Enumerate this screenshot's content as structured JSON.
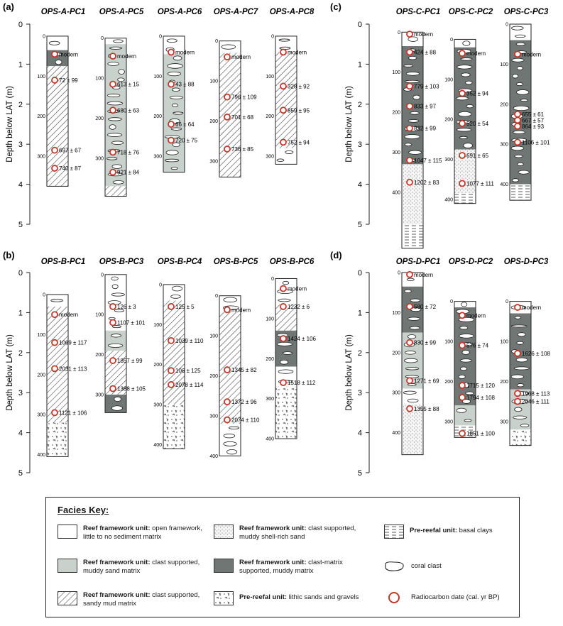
{
  "axis": {
    "title": "Depth below LAT (m)",
    "major_ticks": [
      "0",
      "1",
      "2",
      "3",
      "4",
      "5"
    ]
  },
  "panels": [
    {
      "label": "(a)",
      "depth_max_m": 5,
      "cores": [
        {
          "name": "OPS-A-PC1",
          "length_cm": 375,
          "cm_labels": [
            "0",
            "100",
            "200",
            "300"
          ],
          "units": [
            {
              "from": 0,
              "to": 35,
              "facies": "framework"
            },
            {
              "from": 35,
              "to": 75,
              "facies": "clast-matrix"
            },
            {
              "from": 75,
              "to": 370,
              "facies": "sandy-mud"
            },
            {
              "from": 370,
              "to": 375,
              "facies": "sandy-mud"
            }
          ],
          "dates": [
            {
              "depth_cm": 45,
              "label": "modern"
            },
            {
              "depth_cm": 110,
              "label": "72 ± 99"
            },
            {
              "depth_cm": 285,
              "label": "697 ± 67"
            },
            {
              "depth_cm": 330,
              "label": "740 ± 87"
            }
          ]
        },
        {
          "name": "OPS-A-PC5",
          "length_cm": 395,
          "cm_labels": [
            "0",
            "100",
            "200",
            "300"
          ],
          "units": [
            {
              "from": 0,
              "to": 15,
              "facies": "framework"
            },
            {
              "from": 15,
              "to": 370,
              "facies": "muddy-sand"
            },
            {
              "from": 370,
              "to": 395,
              "facies": "sandy-mud"
            }
          ],
          "dates": [
            {
              "depth_cm": 45,
              "label": "modern"
            },
            {
              "depth_cm": 115,
              "label": "613 ± 15"
            },
            {
              "depth_cm": 180,
              "label": "680 ± 63"
            },
            {
              "depth_cm": 285,
              "label": "718 ± 76"
            },
            {
              "depth_cm": 335,
              "label": "921 ± 84"
            }
          ]
        },
        {
          "name": "OPS-A-PC6",
          "length_cm": 340,
          "cm_labels": [
            "0",
            "100",
            "200",
            "300"
          ],
          "units": [
            {
              "from": 0,
              "to": 45,
              "facies": "framework"
            },
            {
              "from": 45,
              "to": 340,
              "facies": "muddy-sand"
            }
          ],
          "dates": [
            {
              "depth_cm": 40,
              "label": "modern"
            },
            {
              "depth_cm": 120,
              "label": "43 ± 88"
            },
            {
              "depth_cm": 220,
              "label": "66 ± 64"
            },
            {
              "depth_cm": 260,
              "label": "720 ± 75"
            }
          ]
        },
        {
          "name": "OPS-A-PC7",
          "length_cm": 340,
          "cm_labels": [
            "0",
            "100",
            "200",
            "300"
          ],
          "units": [
            {
              "from": 0,
              "to": 30,
              "facies": "framework"
            },
            {
              "from": 30,
              "to": 300,
              "facies": "sandy-mud"
            },
            {
              "from": 300,
              "to": 340,
              "facies": "sandy-mud"
            }
          ],
          "dates": [
            {
              "depth_cm": 40,
              "label": "modern"
            },
            {
              "depth_cm": 140,
              "label": "796 ± 109"
            },
            {
              "depth_cm": 190,
              "label": "701 ± 68"
            },
            {
              "depth_cm": 270,
              "label": "736 ± 85"
            }
          ]
        },
        {
          "name": "OPS-A-PC8",
          "length_cm": 320,
          "cm_labels": [
            "0",
            "100",
            "200",
            "300"
          ],
          "units": [
            {
              "from": 0,
              "to": 40,
              "facies": "framework"
            },
            {
              "from": 40,
              "to": 280,
              "facies": "sandy-mud"
            },
            {
              "from": 280,
              "to": 320,
              "facies": "framework"
            }
          ],
          "dates": [
            {
              "depth_cm": 40,
              "label": "modern"
            },
            {
              "depth_cm": 125,
              "label": "328 ± 92"
            },
            {
              "depth_cm": 185,
              "label": "859 ± 95"
            },
            {
              "depth_cm": 265,
              "label": "752 ± 94"
            }
          ]
        }
      ]
    },
    {
      "label": "(b)",
      "depth_max_m": 5,
      "cores": [
        {
          "name": "OPS-B-PC1",
          "length_cm": 405,
          "cm_labels": [
            "0",
            "100",
            "200",
            "300",
            "400"
          ],
          "units": [
            {
              "from": 0,
              "to": 30,
              "facies": "framework"
            },
            {
              "from": 30,
              "to": 320,
              "facies": "sandy-mud"
            },
            {
              "from": 320,
              "to": 405,
              "facies": "lithic"
            }
          ],
          "dates": [
            {
              "depth_cm": 50,
              "label": "modern"
            },
            {
              "depth_cm": 120,
              "label": "1069 ± 117"
            },
            {
              "depth_cm": 185,
              "label": "2031 ± 113"
            },
            {
              "depth_cm": 295,
              "label": "1121 ± 106"
            }
          ]
        },
        {
          "name": "OPS-B-PC3",
          "length_cm": 345,
          "cm_labels": [
            "0",
            "100",
            "200",
            "300"
          ],
          "units": [
            {
              "from": 0,
              "to": 140,
              "facies": "framework"
            },
            {
              "from": 140,
              "to": 190,
              "facies": "muddy-sand"
            },
            {
              "from": 190,
              "to": 300,
              "facies": "sandy-mud"
            },
            {
              "from": 300,
              "to": 345,
              "facies": "clast-matrix"
            }
          ],
          "dates": [
            {
              "depth_cm": 80,
              "label": "126 ± 3"
            },
            {
              "depth_cm": 120,
              "label": "1107 ± 101"
            },
            {
              "depth_cm": 215,
              "label": "1857 ± 99"
            },
            {
              "depth_cm": 285,
              "label": "1388 ± 105"
            }
          ]
        },
        {
          "name": "OPS-B-PC4",
          "length_cm": 410,
          "cm_labels": [
            "0",
            "100",
            "200",
            "300",
            "400"
          ],
          "units": [
            {
              "from": 0,
              "to": 40,
              "facies": "framework"
            },
            {
              "from": 40,
              "to": 300,
              "facies": "sandy-mud"
            },
            {
              "from": 300,
              "to": 410,
              "facies": "lithic"
            }
          ],
          "dates": [
            {
              "depth_cm": 55,
              "label": "125 ± 5"
            },
            {
              "depth_cm": 140,
              "label": "1039 ± 110"
            },
            {
              "depth_cm": 215,
              "label": "106 ± 125"
            },
            {
              "depth_cm": 250,
              "label": "2078 ± 114"
            }
          ]
        },
        {
          "name": "OPS-B-PC5",
          "length_cm": 400,
          "cm_labels": [
            "0",
            "100",
            "200",
            "300",
            "400"
          ],
          "units": [
            {
              "from": 0,
              "to": 40,
              "facies": "framework"
            },
            {
              "from": 40,
              "to": 320,
              "facies": "sandy-mud"
            },
            {
              "from": 320,
              "to": 400,
              "facies": "framework"
            }
          ],
          "dates": [
            {
              "depth_cm": 35,
              "label": "modern"
            },
            {
              "depth_cm": 185,
              "label": "1345 ± 82"
            },
            {
              "depth_cm": 265,
              "label": "1372 ± 96"
            },
            {
              "depth_cm": 310,
              "label": "2074 ± 110"
            }
          ]
        },
        {
          "name": "OPS-B-PC6",
          "length_cm": 400,
          "cm_labels": [
            "0",
            "100",
            "200",
            "300",
            "400"
          ],
          "units": [
            {
              "from": 0,
              "to": 65,
              "facies": "framework"
            },
            {
              "from": 65,
              "to": 130,
              "facies": "sandy-mud"
            },
            {
              "from": 130,
              "to": 220,
              "facies": "clast-matrix"
            },
            {
              "from": 220,
              "to": 270,
              "facies": "framework"
            },
            {
              "from": 270,
              "to": 400,
              "facies": "lithic"
            }
          ],
          "dates": [
            {
              "depth_cm": 25,
              "label": "modern"
            },
            {
              "depth_cm": 70,
              "label": "1232 ± 6"
            },
            {
              "depth_cm": 150,
              "label": "1424 ± 106"
            },
            {
              "depth_cm": 260,
              "label": "1518 ± 112"
            }
          ]
        }
      ]
    },
    {
      "label": "(c)",
      "depth_max_m": 5,
      "cores": [
        {
          "name": "OPS-C-PC1",
          "length_cm": 540,
          "cm_labels": [
            "0",
            "100",
            "200",
            "300",
            "400"
          ],
          "units": [
            {
              "from": 0,
              "to": 35,
              "facies": "framework"
            },
            {
              "from": 35,
              "to": 330,
              "facies": "clast-matrix"
            },
            {
              "from": 330,
              "to": 480,
              "facies": "shell-sand"
            },
            {
              "from": 480,
              "to": 540,
              "facies": "basal-clay"
            }
          ],
          "dates": [
            {
              "depth_cm": 5,
              "label": "modern"
            },
            {
              "depth_cm": 50,
              "label": "424 ± 88"
            },
            {
              "depth_cm": 135,
              "label": "779 ± 103"
            },
            {
              "depth_cm": 185,
              "label": "833 ± 97"
            },
            {
              "depth_cm": 240,
              "label": "822 ± 99"
            },
            {
              "depth_cm": 320,
              "label": "1047 ± 115"
            },
            {
              "depth_cm": 375,
              "label": "1202 ± 83"
            }
          ]
        },
        {
          "name": "OPS-C-PC2",
          "length_cm": 410,
          "cm_labels": [
            "0",
            "100",
            "200",
            "300",
            "400"
          ],
          "units": [
            {
              "from": 0,
              "to": 20,
              "facies": "framework"
            },
            {
              "from": 20,
              "to": 275,
              "facies": "clast-matrix"
            },
            {
              "from": 275,
              "to": 385,
              "facies": "shell-sand"
            },
            {
              "from": 385,
              "to": 410,
              "facies": "basal-clay"
            }
          ],
          "dates": [
            {
              "depth_cm": 35,
              "label": "modern"
            },
            {
              "depth_cm": 135,
              "label": "352 ± 94"
            },
            {
              "depth_cm": 210,
              "label": "520 ± 54"
            },
            {
              "depth_cm": 290,
              "label": "691 ± 65"
            },
            {
              "depth_cm": 360,
              "label": "1077 ± 111"
            }
          ]
        },
        {
          "name": "OPS-C-PC3",
          "length_cm": 440,
          "cm_labels": [
            "0",
            "100",
            "200",
            "300",
            "400"
          ],
          "units": [
            {
              "from": 0,
              "to": 40,
              "facies": "framework"
            },
            {
              "from": 40,
              "to": 400,
              "facies": "clast-matrix"
            },
            {
              "from": 400,
              "to": 440,
              "facies": "basal-clay"
            }
          ],
          "dates": [
            {
              "depth_cm": 75,
              "label": "modern"
            },
            {
              "depth_cm": 225,
              "label": "655 ± 61"
            },
            {
              "depth_cm": 240,
              "label": "667 ± 57"
            },
            {
              "depth_cm": 255,
              "label": "864 ± 93"
            },
            {
              "depth_cm": 295,
              "label": "1106 ± 101"
            }
          ]
        }
      ]
    },
    {
      "label": "(d)",
      "depth_max_m": 5,
      "cores": [
        {
          "name": "OPS-D-PC1",
          "length_cm": 455,
          "cm_labels": [
            "0",
            "100",
            "200",
            "300",
            "400"
          ],
          "units": [
            {
              "from": 0,
              "to": 35,
              "facies": "framework"
            },
            {
              "from": 35,
              "to": 150,
              "facies": "clast-matrix"
            },
            {
              "from": 150,
              "to": 290,
              "facies": "muddy-sand"
            },
            {
              "from": 290,
              "to": 330,
              "facies": "framework"
            },
            {
              "from": 330,
              "to": 455,
              "facies": "shell-sand"
            }
          ],
          "dates": [
            {
              "depth_cm": 5,
              "label": "modern"
            },
            {
              "depth_cm": 85,
              "label": "580 ± 72"
            },
            {
              "depth_cm": 175,
              "label": "830 ± 99"
            },
            {
              "depth_cm": 270,
              "label": "1271 ± 69"
            },
            {
              "depth_cm": 340,
              "label": "1355 ± 88"
            }
          ]
        },
        {
          "name": "OPS-D-PC2",
          "length_cm": 340,
          "cm_labels": [
            "0",
            "100",
            "200",
            "300"
          ],
          "units": [
            {
              "from": 0,
              "to": 15,
              "facies": "framework"
            },
            {
              "from": 15,
              "to": 260,
              "facies": "clast-matrix"
            },
            {
              "from": 260,
              "to": 310,
              "facies": "muddy-sand"
            },
            {
              "from": 310,
              "to": 340,
              "facies": "basal-clay"
            }
          ],
          "dates": [
            {
              "depth_cm": 35,
              "label": "modern"
            },
            {
              "depth_cm": 110,
              "label": "576 ± 74"
            },
            {
              "depth_cm": 210,
              "label": "1715 ± 120"
            },
            {
              "depth_cm": 240,
              "label": "1794 ± 108"
            },
            {
              "depth_cm": 330,
              "label": "1851 ± 100"
            }
          ]
        },
        {
          "name": "OPS-D-PC3",
          "length_cm": 360,
          "cm_labels": [
            "0",
            "100",
            "200",
            "300"
          ],
          "units": [
            {
              "from": 0,
              "to": 30,
              "facies": "framework"
            },
            {
              "from": 30,
              "to": 220,
              "facies": "clast-matrix"
            },
            {
              "from": 220,
              "to": 320,
              "facies": "muddy-sand"
            },
            {
              "from": 320,
              "to": 360,
              "facies": "lithic"
            }
          ],
          "dates": [
            {
              "depth_cm": 15,
              "label": "modern"
            },
            {
              "depth_cm": 130,
              "label": "1626 ± 108"
            },
            {
              "depth_cm": 230,
              "label": "1968 ± 113"
            },
            {
              "depth_cm": 250,
              "label": "2046 ± 111"
            }
          ]
        }
      ]
    }
  ],
  "facies_key": {
    "title": "Facies Key:",
    "items": [
      {
        "id": "framework",
        "bold": "Reef framework unit:",
        "text": " open framework, little to no sediment matrix",
        "color": "#ffffff"
      },
      {
        "id": "muddy-sand",
        "bold": "Reef framework unit:",
        "text": " clast supported, muddy sand matrix",
        "color": "#c9d1cd"
      },
      {
        "id": "sandy-mud",
        "bold": "Reef framework unit:",
        "text": " clast supported, sandy mud matrix",
        "color": "#ffffff"
      },
      {
        "id": "shell-sand",
        "bold": "Reef framework unit:",
        "text": " clast supported, muddy shell-rich sand",
        "color": "#f2f2f2"
      },
      {
        "id": "clast-matrix",
        "bold": "Reef framework unit:",
        "text": " clast-matrix supported, muddy matrix",
        "color": "#6f7674"
      },
      {
        "id": "lithic",
        "bold": "Pre-reefal unit:",
        "text": " lithic sands and gravels",
        "color": "#ffffff"
      },
      {
        "id": "basal-clay",
        "bold": "Pre-reefal unit:",
        "text": " basal clays",
        "color": "#ffffff"
      },
      {
        "id": "coral",
        "bold": "",
        "text": "coral clast",
        "color": "#ffffff"
      },
      {
        "id": "radiocarbon",
        "bold": "",
        "text": "Radiocarbon date (cal. yr BP)",
        "color": "#c0392b"
      }
    ]
  }
}
